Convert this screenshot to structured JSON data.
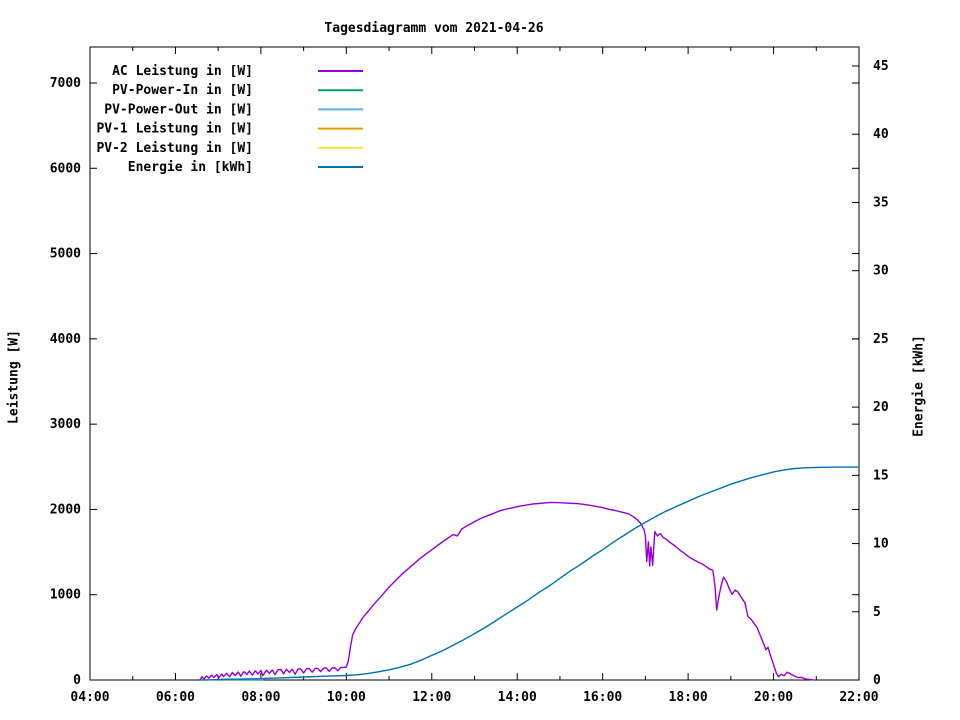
{
  "chart": {
    "title": "Tagesdiagramm vom 2021-04-26",
    "ylabel_left": "Leistung [W]",
    "ylabel_right": "Energie [kWh]"
  },
  "colors": {
    "background": "#ffffff",
    "foreground": "#000000"
  },
  "chart_data": {
    "type": "line",
    "title": "Tagesdiagramm vom 2021-04-26",
    "xlabel": "",
    "ylabel_left": "Leistung [W]",
    "ylabel_right": "Energie [kWh]",
    "grid": false,
    "legend_position": "top-left-inside",
    "x_axis": {
      "unit": "time",
      "start_hour": 4,
      "end_hour": 22,
      "major_tick_step_hours": 2,
      "minor_tick_step_hours": 1,
      "tick_labels": [
        "04:00",
        "06:00",
        "08:00",
        "10:00",
        "12:00",
        "14:00",
        "16:00",
        "18:00",
        "20:00",
        "22:00"
      ]
    },
    "y_left": {
      "min": 0,
      "max": 7420,
      "ticks": [
        0,
        1000,
        2000,
        3000,
        4000,
        5000,
        6000,
        7000
      ]
    },
    "y_right": {
      "min": 0,
      "max": 45.9,
      "ticks": [
        0,
        5,
        10,
        15,
        20,
        25,
        30,
        35,
        40,
        45
      ]
    },
    "series": [
      {
        "name": "AC Leistung in [W]",
        "color": "#9400d3",
        "axis": "left",
        "points": [
          [
            6.58,
            5
          ],
          [
            6.62,
            38
          ],
          [
            6.67,
            14
          ],
          [
            6.73,
            48
          ],
          [
            6.78,
            22
          ],
          [
            6.85,
            58
          ],
          [
            6.9,
            30
          ],
          [
            6.97,
            64
          ],
          [
            7.02,
            28
          ],
          [
            7.08,
            70
          ],
          [
            7.13,
            42
          ],
          [
            7.2,
            78
          ],
          [
            7.27,
            38
          ],
          [
            7.33,
            88
          ],
          [
            7.4,
            52
          ],
          [
            7.47,
            94
          ],
          [
            7.53,
            44
          ],
          [
            7.6,
            99
          ],
          [
            7.67,
            66
          ],
          [
            7.73,
            104
          ],
          [
            7.8,
            58
          ],
          [
            7.87,
            108
          ],
          [
            7.93,
            72
          ],
          [
            8.0,
            112
          ],
          [
            8.05,
            52
          ],
          [
            8.13,
            116
          ],
          [
            8.2,
            78
          ],
          [
            8.27,
            119
          ],
          [
            8.33,
            62
          ],
          [
            8.4,
            121
          ],
          [
            8.47,
            123
          ],
          [
            8.53,
            72
          ],
          [
            8.6,
            125
          ],
          [
            8.67,
            88
          ],
          [
            8.73,
            127
          ],
          [
            8.8,
            68
          ],
          [
            8.87,
            129
          ],
          [
            8.93,
            131
          ],
          [
            9.0,
            82
          ],
          [
            9.07,
            133
          ],
          [
            9.13,
            134
          ],
          [
            9.2,
            92
          ],
          [
            9.27,
            136
          ],
          [
            9.33,
            137
          ],
          [
            9.4,
            98
          ],
          [
            9.47,
            139
          ],
          [
            9.53,
            141
          ],
          [
            9.6,
            102
          ],
          [
            9.67,
            143
          ],
          [
            9.73,
            144
          ],
          [
            9.8,
            108
          ],
          [
            9.87,
            146
          ],
          [
            9.93,
            148
          ],
          [
            10.0,
            152
          ],
          [
            10.05,
            230
          ],
          [
            10.1,
            400
          ],
          [
            10.15,
            530
          ],
          [
            10.22,
            600
          ],
          [
            10.3,
            665
          ],
          [
            10.4,
            740
          ],
          [
            10.5,
            800
          ],
          [
            10.6,
            860
          ],
          [
            10.72,
            930
          ],
          [
            10.85,
            1000
          ],
          [
            11.0,
            1090
          ],
          [
            11.15,
            1165
          ],
          [
            11.3,
            1240
          ],
          [
            11.45,
            1305
          ],
          [
            11.6,
            1370
          ],
          [
            11.75,
            1435
          ],
          [
            11.9,
            1490
          ],
          [
            12.05,
            1545
          ],
          [
            12.2,
            1600
          ],
          [
            12.35,
            1655
          ],
          [
            12.5,
            1705
          ],
          [
            12.6,
            1690
          ],
          [
            12.7,
            1770
          ],
          [
            12.85,
            1815
          ],
          [
            13.0,
            1855
          ],
          [
            13.15,
            1895
          ],
          [
            13.3,
            1925
          ],
          [
            13.45,
            1955
          ],
          [
            13.6,
            1985
          ],
          [
            13.75,
            2005
          ],
          [
            13.9,
            2020
          ],
          [
            14.05,
            2038
          ],
          [
            14.2,
            2050
          ],
          [
            14.35,
            2062
          ],
          [
            14.5,
            2070
          ],
          [
            14.65,
            2076
          ],
          [
            14.8,
            2082
          ],
          [
            14.95,
            2080
          ],
          [
            15.1,
            2076
          ],
          [
            15.25,
            2072
          ],
          [
            15.4,
            2068
          ],
          [
            15.55,
            2060
          ],
          [
            15.7,
            2048
          ],
          [
            15.85,
            2035
          ],
          [
            16.0,
            2020
          ],
          [
            16.15,
            2002
          ],
          [
            16.3,
            1988
          ],
          [
            16.45,
            1968
          ],
          [
            16.6,
            1950
          ],
          [
            16.72,
            1915
          ],
          [
            16.82,
            1875
          ],
          [
            16.9,
            1830
          ],
          [
            16.97,
            1760
          ],
          [
            17.0,
            1690
          ],
          [
            17.03,
            1390
          ],
          [
            17.07,
            1620
          ],
          [
            17.1,
            1335
          ],
          [
            17.13,
            1560
          ],
          [
            17.17,
            1345
          ],
          [
            17.22,
            1740
          ],
          [
            17.28,
            1690
          ],
          [
            17.35,
            1715
          ],
          [
            17.42,
            1670
          ],
          [
            17.5,
            1645
          ],
          [
            17.58,
            1610
          ],
          [
            17.67,
            1580
          ],
          [
            17.75,
            1548
          ],
          [
            17.83,
            1515
          ],
          [
            17.92,
            1482
          ],
          [
            18.0,
            1450
          ],
          [
            18.08,
            1425
          ],
          [
            18.17,
            1400
          ],
          [
            18.25,
            1378
          ],
          [
            18.33,
            1360
          ],
          [
            18.42,
            1330
          ],
          [
            18.5,
            1302
          ],
          [
            18.58,
            1285
          ],
          [
            18.63,
            1100
          ],
          [
            18.67,
            820
          ],
          [
            18.72,
            980
          ],
          [
            18.78,
            1120
          ],
          [
            18.83,
            1205
          ],
          [
            18.9,
            1150
          ],
          [
            18.97,
            1060
          ],
          [
            19.03,
            1005
          ],
          [
            19.1,
            1055
          ],
          [
            19.17,
            1030
          ],
          [
            19.25,
            965
          ],
          [
            19.33,
            905
          ],
          [
            19.4,
            745
          ],
          [
            19.47,
            715
          ],
          [
            19.55,
            660
          ],
          [
            19.62,
            610
          ],
          [
            19.7,
            510
          ],
          [
            19.77,
            425
          ],
          [
            19.82,
            355
          ],
          [
            19.87,
            385
          ],
          [
            19.92,
            300
          ],
          [
            19.97,
            225
          ],
          [
            20.02,
            150
          ],
          [
            20.07,
            75
          ],
          [
            20.12,
            38
          ],
          [
            20.18,
            68
          ],
          [
            20.25,
            50
          ],
          [
            20.32,
            92
          ],
          [
            20.4,
            70
          ],
          [
            20.48,
            48
          ],
          [
            20.57,
            28
          ],
          [
            20.65,
            32
          ],
          [
            20.75,
            12
          ],
          [
            20.85,
            6
          ],
          [
            20.92,
            2
          ]
        ]
      },
      {
        "name": "PV-Power-In in [W]",
        "color": "#009e73",
        "axis": "left",
        "points": [
          [
            7.08,
            4
          ],
          [
            7.5,
            4
          ],
          [
            8.05,
            4
          ]
        ]
      },
      {
        "name": "PV-Power-Out in [W]",
        "color": "#56b4e9",
        "axis": "left",
        "points": [
          [
            7.08,
            10
          ],
          [
            7.3,
            10
          ],
          [
            7.6,
            12
          ],
          [
            8.05,
            10
          ]
        ]
      },
      {
        "name": "PV-1 Leistung in [W]",
        "color": "#e69f00",
        "axis": "left",
        "points": []
      },
      {
        "name": "PV-2 Leistung in [W]",
        "color": "#f0e442",
        "axis": "left",
        "points": []
      },
      {
        "name": "Energie in [kWh]",
        "color": "#0072b2",
        "axis": "right",
        "points": [
          [
            6.6,
            0
          ],
          [
            7.0,
            0.02
          ],
          [
            7.5,
            0.06
          ],
          [
            8.0,
            0.1
          ],
          [
            8.5,
            0.16
          ],
          [
            9.0,
            0.22
          ],
          [
            9.5,
            0.28
          ],
          [
            10.0,
            0.33
          ],
          [
            10.25,
            0.38
          ],
          [
            10.5,
            0.47
          ],
          [
            10.75,
            0.6
          ],
          [
            11.0,
            0.75
          ],
          [
            11.25,
            0.93
          ],
          [
            11.5,
            1.15
          ],
          [
            11.75,
            1.45
          ],
          [
            12.0,
            1.8
          ],
          [
            12.25,
            2.15
          ],
          [
            12.5,
            2.55
          ],
          [
            12.75,
            2.95
          ],
          [
            13.0,
            3.4
          ],
          [
            13.25,
            3.85
          ],
          [
            13.5,
            4.35
          ],
          [
            13.75,
            4.85
          ],
          [
            14.0,
            5.35
          ],
          [
            14.25,
            5.85
          ],
          [
            14.5,
            6.4
          ],
          [
            14.75,
            6.9
          ],
          [
            15.0,
            7.45
          ],
          [
            15.25,
            8.0
          ],
          [
            15.5,
            8.5
          ],
          [
            15.75,
            9.05
          ],
          [
            16.0,
            9.55
          ],
          [
            16.25,
            10.1
          ],
          [
            16.5,
            10.6
          ],
          [
            16.75,
            11.1
          ],
          [
            17.0,
            11.55
          ],
          [
            17.25,
            12.0
          ],
          [
            17.5,
            12.4
          ],
          [
            17.75,
            12.75
          ],
          [
            18.0,
            13.1
          ],
          [
            18.25,
            13.45
          ],
          [
            18.5,
            13.75
          ],
          [
            18.75,
            14.05
          ],
          [
            19.0,
            14.35
          ],
          [
            19.25,
            14.6
          ],
          [
            19.5,
            14.85
          ],
          [
            19.75,
            15.05
          ],
          [
            20.0,
            15.25
          ],
          [
            20.25,
            15.4
          ],
          [
            20.5,
            15.5
          ],
          [
            20.75,
            15.55
          ],
          [
            21.0,
            15.58
          ],
          [
            21.5,
            15.6
          ],
          [
            22.0,
            15.6
          ]
        ]
      }
    ]
  }
}
